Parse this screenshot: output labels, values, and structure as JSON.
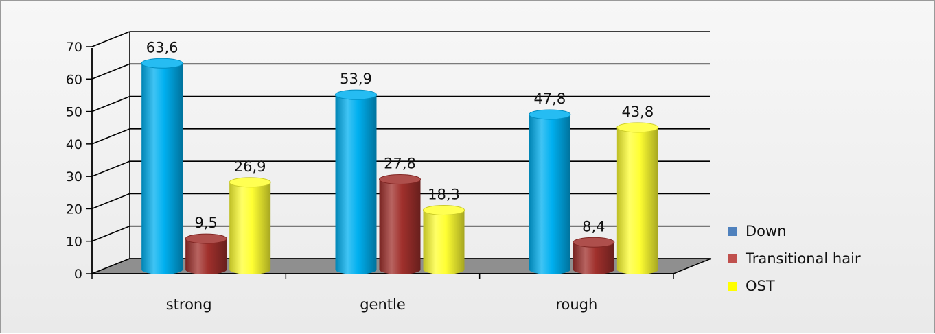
{
  "chart_data": {
    "type": "bar",
    "categories": [
      "strong",
      "gentle",
      "rough"
    ],
    "series": [
      {
        "name": "Down",
        "values": [
          63.6,
          53.9,
          47.8
        ],
        "labels": [
          "63,6",
          "53,9",
          "47,8"
        ],
        "color": "#00b0f0",
        "legend_color": "#4f81bd"
      },
      {
        "name": "Transitional hair",
        "values": [
          9.5,
          27.8,
          8.4
        ],
        "labels": [
          "9,5",
          "27,8",
          "8,4"
        ],
        "color": "#a0302c",
        "legend_color": "#c0504d"
      },
      {
        "name": "OST",
        "values": [
          26.9,
          18.3,
          43.8
        ],
        "labels": [
          "26,9",
          "18,3",
          "43,8"
        ],
        "color": "#ffff33",
        "legend_color": "#ffff00"
      }
    ],
    "yticks": [
      "0",
      "10",
      "20",
      "30",
      "40",
      "50",
      "60",
      "70"
    ],
    "ylim": [
      0,
      70
    ],
    "grid": true,
    "legend_position": "right",
    "style": "3d-cylinder"
  }
}
